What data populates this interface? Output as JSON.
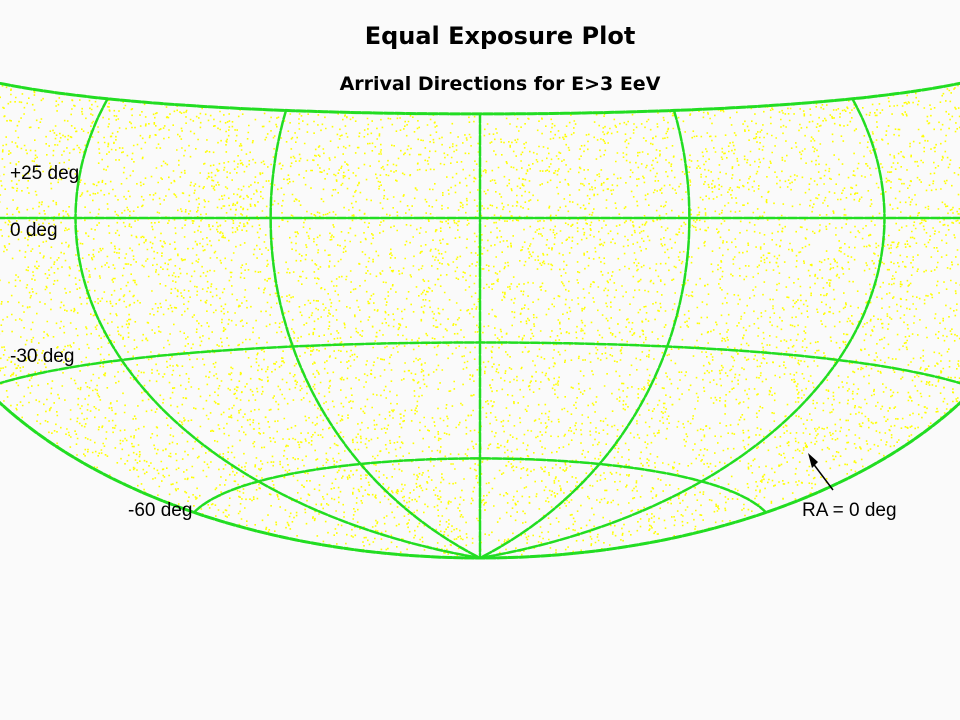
{
  "chart_data": {
    "type": "scatter",
    "projection": "hammer-aitoff equal-exposure sky map",
    "title": "Equal Exposure Plot",
    "subtitle": "Arrival Directions for E>3 EeV",
    "declination_labels": [
      "+25 deg",
      "0 deg",
      "-30 deg",
      "-60 deg"
    ],
    "ra_label": "RA = 0 deg",
    "declination_range": [
      -90,
      25
    ],
    "declination_gridlines": [
      0,
      -30,
      -60
    ],
    "ra_gridlines": [
      0,
      60,
      120,
      180,
      240,
      300,
      360
    ],
    "point_density": "uniform",
    "colors": {
      "points": "#ffff00",
      "grid": "#22dd22",
      "background": "#fafafa"
    }
  }
}
